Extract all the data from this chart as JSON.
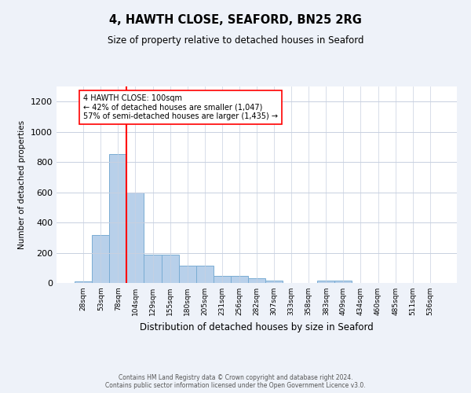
{
  "title": "4, HAWTH CLOSE, SEAFORD, BN25 2RG",
  "subtitle": "Size of property relative to detached houses in Seaford",
  "xlabel": "Distribution of detached houses by size in Seaford",
  "ylabel": "Number of detached properties",
  "categories": [
    "28sqm",
    "53sqm",
    "78sqm",
    "104sqm",
    "129sqm",
    "155sqm",
    "180sqm",
    "205sqm",
    "231sqm",
    "256sqm",
    "282sqm",
    "307sqm",
    "333sqm",
    "358sqm",
    "383sqm",
    "409sqm",
    "434sqm",
    "460sqm",
    "485sqm",
    "511sqm",
    "536sqm"
  ],
  "values": [
    10,
    315,
    855,
    600,
    185,
    185,
    115,
    115,
    45,
    45,
    30,
    15,
    0,
    0,
    15,
    15,
    0,
    0,
    0,
    0,
    0
  ],
  "bar_color": "#b8d0ea",
  "bar_edge_color": "#7aadd4",
  "vline_x": 2.5,
  "vline_color": "red",
  "annotation_text": "4 HAWTH CLOSE: 100sqm\n← 42% of detached houses are smaller (1,047)\n57% of semi-detached houses are larger (1,435) →",
  "annotation_box_color": "white",
  "annotation_box_edge": "red",
  "ylim": [
    0,
    1300
  ],
  "yticks": [
    0,
    200,
    400,
    600,
    800,
    1000,
    1200
  ],
  "footer": "Contains HM Land Registry data © Crown copyright and database right 2024.\nContains public sector information licensed under the Open Government Licence v3.0.",
  "background_color": "#eef2f9",
  "plot_bg_color": "#ffffff",
  "grid_color": "#c8d0e0"
}
